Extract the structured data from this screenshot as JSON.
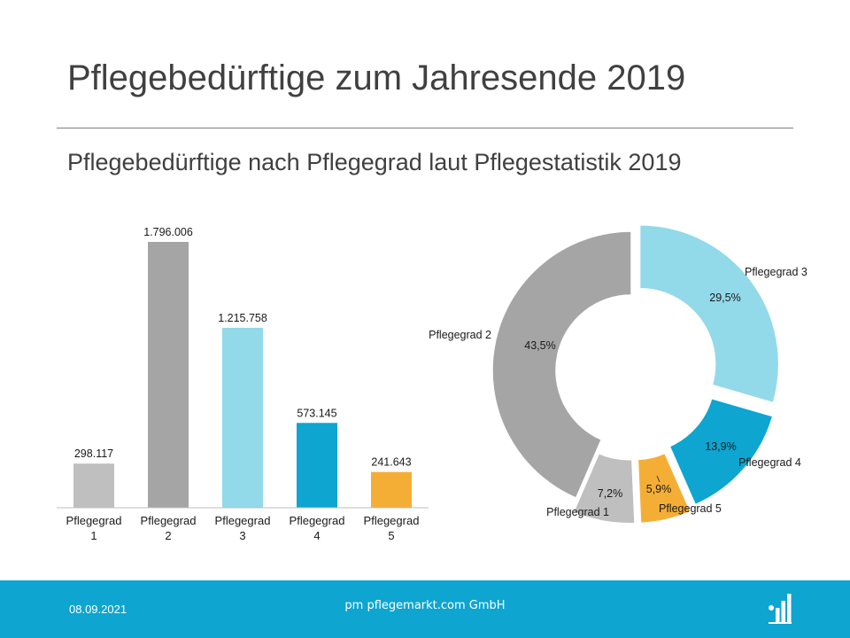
{
  "slide": {
    "title": "Pflegebedürftige zum Jahresende 2019",
    "subtitle": "Pflegebedürftige nach Pflegegrad laut Pflegestatistik 2019"
  },
  "footer": {
    "date": "08.09.2021",
    "company": "pm pflegemarkt.com GmbH",
    "logo_icon": "bar-chart-logo-icon"
  },
  "colors": {
    "footer_bg": "#0ea5d0",
    "pflegegrad_1": "#bfbfbf",
    "pflegegrad_2": "#a5a5a5",
    "pflegegrad_3": "#92d9ea",
    "pflegegrad_4": "#0ea5d0",
    "pflegegrad_5": "#f5ae35"
  },
  "chart_data": [
    {
      "type": "bar",
      "categories": [
        [
          "Pflegegrad",
          "1"
        ],
        [
          "Pflegegrad",
          "2"
        ],
        [
          "Pflegegrad",
          "3"
        ],
        [
          "Pflegegrad",
          "4"
        ],
        [
          "Pflegegrad",
          "5"
        ]
      ],
      "values": [
        298117,
        1796006,
        1215758,
        573145,
        241643
      ],
      "value_labels": [
        "298.117",
        "1.796.006",
        "1.215.758",
        "573.145",
        "241.643"
      ],
      "colors": [
        "#bfbfbf",
        "#a5a5a5",
        "#92d9ea",
        "#0ea5d0",
        "#f5ae35"
      ],
      "ylim": [
        0,
        1900000
      ],
      "grid": false,
      "legend": "none"
    },
    {
      "type": "pie",
      "variant": "donut-exploded",
      "segments": [
        {
          "label": "Pflegegrad 3",
          "value": 29.5,
          "value_label": "29,5%",
          "color": "#92d9ea"
        },
        {
          "label": "Pflegegrad 4",
          "value": 13.9,
          "value_label": "13,9%",
          "color": "#0ea5d0"
        },
        {
          "label": "Pflegegrad 5",
          "value": 5.9,
          "value_label": "5,9%",
          "color": "#f5ae35"
        },
        {
          "label": "Pflegegrad 1",
          "value": 7.2,
          "value_label": "7,2%",
          "color": "#bfbfbf"
        },
        {
          "label": "Pflegegrad 2",
          "value": 43.5,
          "value_label": "43,5%",
          "color": "#a5a5a5"
        }
      ],
      "start": "12 o'clock, clockwise",
      "legend": "none"
    }
  ]
}
